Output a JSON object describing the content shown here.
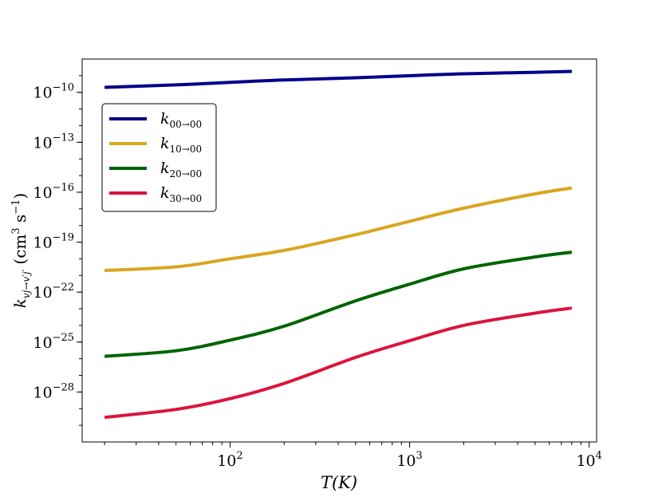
{
  "chart_data": {
    "type": "line",
    "xscale": "log",
    "yscale": "log",
    "xlim": [
      15,
      11000
    ],
    "ylim": [
      1e-31,
      1e-08
    ],
    "xlabel": "T(K)",
    "ylabel": "k_{vj→v'j'} (cm^3 s^-1)",
    "ylabel_parts": {
      "k": "k",
      "sub": "vj→v′j′",
      "units_open": "(cm",
      "units_exp": "3",
      "units_s": " s",
      "units_sexp": "−1",
      "units_close": ")"
    },
    "xticks": [
      {
        "value": 100,
        "base": "10",
        "exp": "2"
      },
      {
        "value": 1000,
        "base": "10",
        "exp": "3"
      },
      {
        "value": 10000,
        "base": "10",
        "exp": "4"
      }
    ],
    "yticks": [
      {
        "value": 1e-10,
        "base": "10",
        "exp": "−10"
      },
      {
        "value": 1e-13,
        "base": "10",
        "exp": "−13"
      },
      {
        "value": 1e-16,
        "base": "10",
        "exp": "−16"
      },
      {
        "value": 1e-19,
        "base": "10",
        "exp": "−19"
      },
      {
        "value": 1e-22,
        "base": "10",
        "exp": "−22"
      },
      {
        "value": 1e-25,
        "base": "10",
        "exp": "−25"
      },
      {
        "value": 1e-28,
        "base": "10",
        "exp": "−28"
      }
    ],
    "x": [
      20,
      50,
      100,
      200,
      500,
      1000,
      2000,
      5000,
      8000
    ],
    "series": [
      {
        "name": "k00→00",
        "label_k": "k",
        "label_sub": "00→00",
        "color": "#00008b",
        "values": [
          2e-10,
          2.8e-10,
          4e-10,
          5.5e-10,
          7.5e-10,
          1e-09,
          1.3e-09,
          1.6e-09,
          1.8e-09
        ]
      },
      {
        "name": "k10→00",
        "label_k": "k",
        "label_sub": "10→00",
        "color": "#daa520",
        "values": [
          2e-21,
          3.3e-21,
          1e-20,
          3.2e-20,
          2.8e-19,
          1.8e-18,
          1.1e-17,
          8e-17,
          1.8e-16
        ]
      },
      {
        "name": "k20→00",
        "label_k": "k",
        "label_sub": "20→00",
        "color": "#006400",
        "values": [
          1.4e-26,
          3e-26,
          1.3e-25,
          9e-25,
          3e-23,
          3e-22,
          2.5e-21,
          1.3e-20,
          2.5e-20
        ]
      },
      {
        "name": "k30→00",
        "label_k": "k",
        "label_sub": "30→00",
        "color": "#dc143c",
        "values": [
          3e-30,
          9e-30,
          4e-29,
          3.3e-28,
          1.2e-26,
          1.2e-25,
          1e-24,
          5.5e-24,
          1.1e-23
        ]
      }
    ],
    "grid": false,
    "legend_position": "upper-left"
  }
}
